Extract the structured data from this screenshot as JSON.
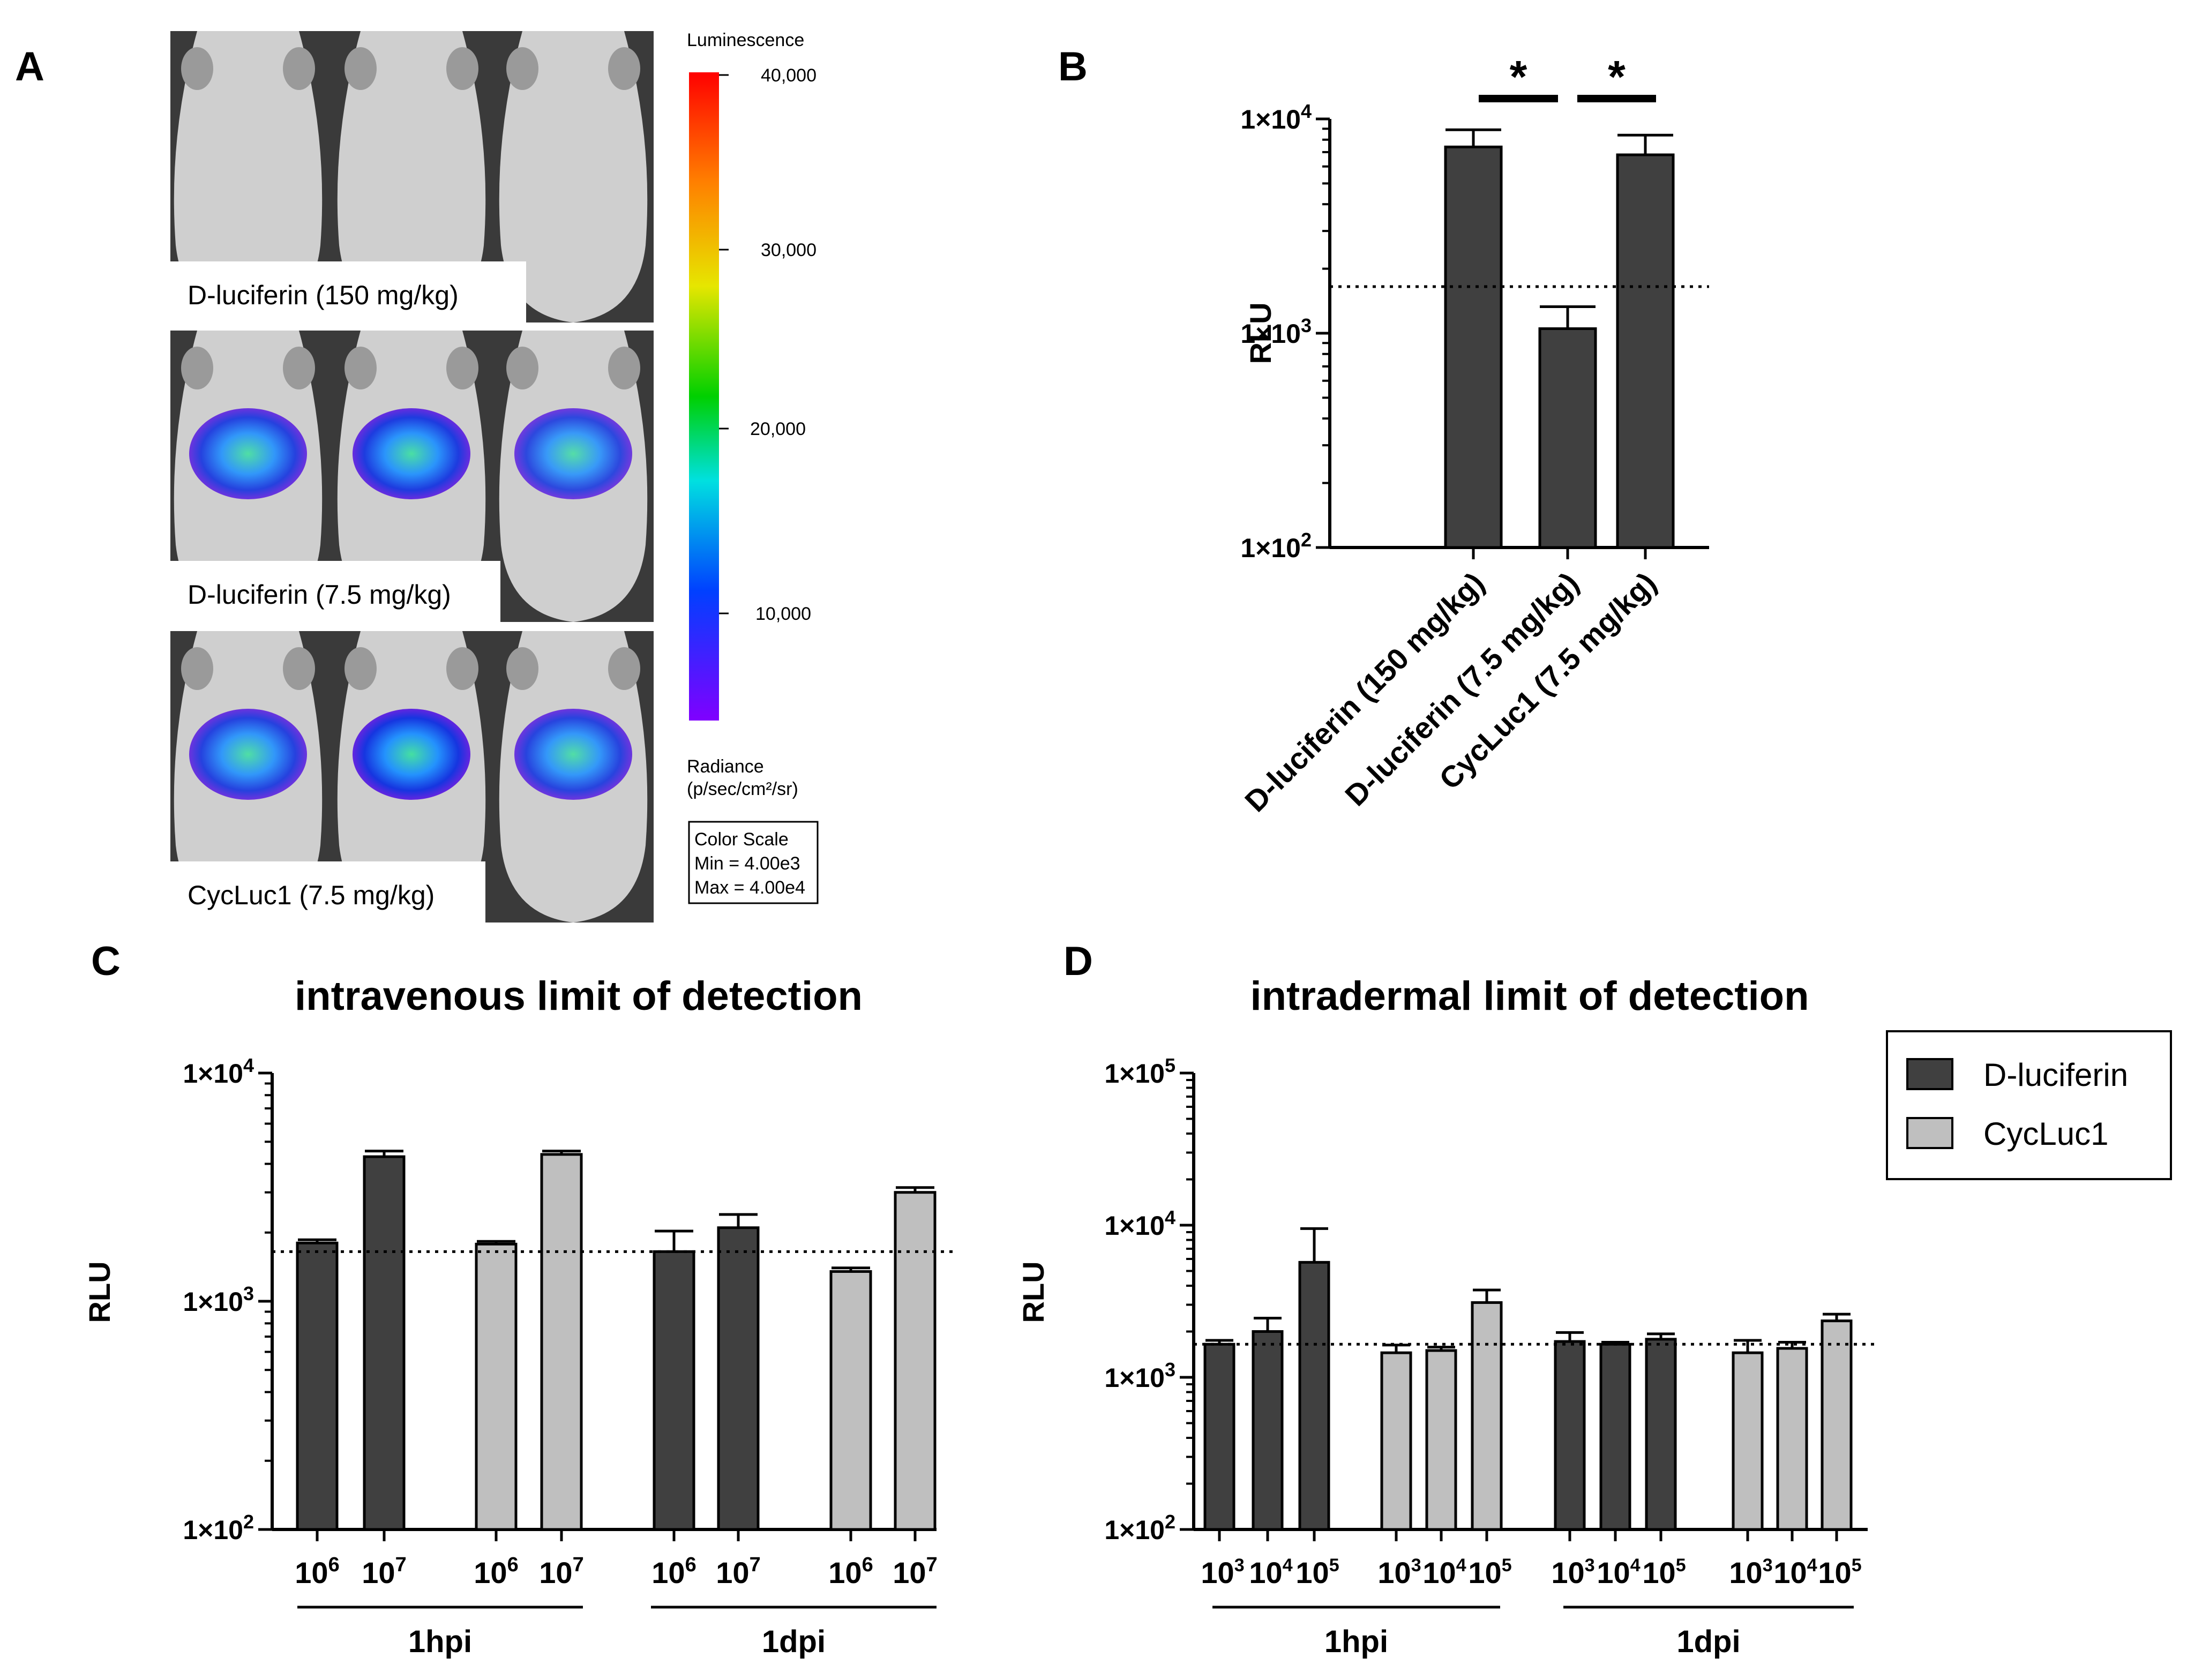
{
  "colors": {
    "dark_bar": "#404040",
    "light_bar": "#bfbfbf",
    "photo_bg": "#3a3a3a",
    "mouse": "#cfcfcf"
  },
  "panel_letters": [
    "A",
    "B",
    "C",
    "D"
  ],
  "panelA": {
    "legend_title": "Luminescence",
    "scale_ticks": [
      "40,000",
      "30,000",
      "20,000",
      "10,000"
    ],
    "radiance_label": [
      "Radiance",
      "(p/sec/cm²/sr)"
    ],
    "color_scale_box": [
      "Color Scale",
      "Min = 4.00e3",
      "Max = 4.00e4"
    ],
    "rows": [
      {
        "label": "D-luciferin (150 mg/kg)",
        "signal": [
          0.0,
          0.0,
          0.0
        ]
      },
      {
        "label": "D-luciferin (7.5 mg/kg)",
        "signal": [
          0.35,
          0.45,
          0.25
        ]
      },
      {
        "label": "CycLuc1 (7.5 mg/kg)",
        "signal": [
          0.35,
          0.55,
          0.32
        ]
      }
    ]
  },
  "chart_data": [
    {
      "id": "B",
      "type": "bar",
      "title": "",
      "ylabel": "RLU",
      "yscale": "log",
      "ylim": [
        100,
        10000
      ],
      "yticks": [
        "1×10⁴",
        "1×10³",
        "1×10²"
      ],
      "categories": [
        "D-luciferin (150 mg/kg)",
        "D-luciferin (7.5 mg/kg)",
        "CycLuc1 (7.5 mg/kg)"
      ],
      "values": [
        7400,
        1050,
        6800
      ],
      "errors": [
        1500,
        280,
        1600
      ],
      "threshold": 1650,
      "significance": [
        "*",
        "*"
      ]
    },
    {
      "id": "C",
      "type": "bar",
      "title": "intravenous limit of detection",
      "ylabel": "RLU",
      "yscale": "log",
      "ylim": [
        100,
        10000
      ],
      "yticks": [
        "1×10⁴",
        "1×10³",
        "1×10²"
      ],
      "tick_base": "10",
      "categories": [
        "6",
        "7",
        "6",
        "7",
        "6",
        "7",
        "6",
        "7"
      ],
      "groups": [
        "1hpi",
        "1dpi"
      ],
      "series_index": [
        0,
        0,
        1,
        1,
        0,
        0,
        1,
        1
      ],
      "values": [
        1800,
        4300,
        1780,
        4400,
        1650,
        2100,
        1350,
        3000
      ],
      "errors": [
        60,
        250,
        50,
        150,
        380,
        300,
        50,
        150
      ],
      "threshold": 1650
    },
    {
      "id": "D",
      "type": "bar",
      "title": "intradermal limit of detection",
      "ylabel": "RLU",
      "yscale": "log",
      "ylim": [
        100,
        100000
      ],
      "yticks": [
        "1×10⁵",
        "1×10⁴",
        "1×10³",
        "1×10²"
      ],
      "tick_base": "10",
      "categories": [
        "3",
        "4",
        "5",
        "3",
        "4",
        "5",
        "3",
        "4",
        "5",
        "3",
        "4",
        "5"
      ],
      "groups": [
        "1hpi",
        "1dpi"
      ],
      "series_index": [
        0,
        0,
        0,
        1,
        1,
        1,
        0,
        0,
        0,
        1,
        1,
        1
      ],
      "values": [
        1650,
        2000,
        5700,
        1450,
        1500,
        3100,
        1720,
        1650,
        1780,
        1450,
        1550,
        2350
      ],
      "errors": [
        100,
        450,
        3800,
        180,
        80,
        650,
        250,
        50,
        150,
        300,
        150,
        250
      ],
      "threshold": 1650
    }
  ],
  "legend": [
    "D-luciferin",
    "CycLuc1"
  ]
}
